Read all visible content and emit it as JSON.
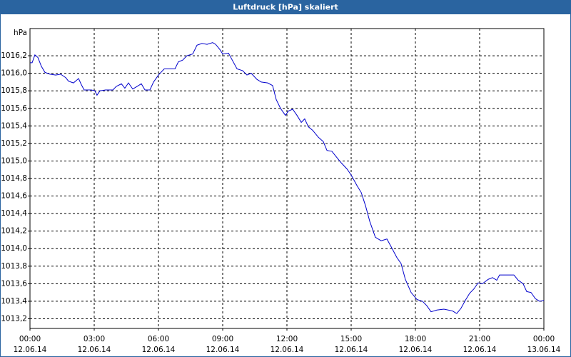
{
  "chart_data": {
    "type": "line",
    "title": "Luftdruck [hPa] skaliert",
    "y_unit": "hPa",
    "x": [
      0,
      0.1,
      0.23,
      0.37,
      0.53,
      0.7,
      0.93,
      1.2,
      1.43,
      1.67,
      1.8,
      2.03,
      2.27,
      2.4,
      2.53,
      2.87,
      3.03,
      3.13,
      3.27,
      3.53,
      3.87,
      4.03,
      4.27,
      4.43,
      4.6,
      4.8,
      5,
      5.2,
      5.37,
      5.6,
      5.77,
      6,
      6.27,
      6.6,
      6.77,
      6.93,
      7.13,
      7.33,
      7.6,
      7.8,
      8.03,
      8.27,
      8.53,
      8.67,
      8.87,
      9,
      9.27,
      9.47,
      9.67,
      9.93,
      10.13,
      10.33,
      10.6,
      10.8,
      11.1,
      11.33,
      11.5,
      11.7,
      11.93,
      12.07,
      12.27,
      12.47,
      12.67,
      12.83,
      13,
      13.2,
      13.47,
      13.7,
      13.87,
      14.1,
      14.33,
      14.53,
      14.8,
      15,
      15.27,
      15.47,
      15.67,
      15.87,
      16.13,
      16.4,
      16.67,
      16.87,
      17.13,
      17.33,
      17.53,
      17.8,
      18.07,
      18.33,
      18.53,
      18.73,
      19,
      19.33,
      19.73,
      19.93,
      20.13,
      20.33,
      20.53,
      20.73,
      20.93,
      21.13,
      21.4,
      21.6,
      21.8,
      21.93,
      22.27,
      22.6,
      22.8,
      23.03,
      23.2,
      23.4,
      23.6,
      23.8,
      24
    ],
    "series": [
      {
        "name": "Luftdruck",
        "color": "#0000cc",
        "values": [
          1016.12,
          1016.12,
          1016.21,
          1016.18,
          1016.08,
          1016.01,
          1015.99,
          1015.98,
          1015.99,
          1015.95,
          1015.91,
          1015.89,
          1015.94,
          1015.87,
          1015.81,
          1015.81,
          1015.8,
          1015.75,
          1015.8,
          1015.81,
          1015.81,
          1015.85,
          1015.88,
          1015.83,
          1015.89,
          1015.82,
          1015.85,
          1015.88,
          1015.81,
          1015.81,
          1015.9,
          1015.98,
          1016.05,
          1016.05,
          1016.05,
          1016.13,
          1016.15,
          1016.2,
          1016.22,
          1016.32,
          1016.34,
          1016.33,
          1016.35,
          1016.33,
          1016.27,
          1016.22,
          1016.23,
          1016.14,
          1016.05,
          1016.03,
          1015.98,
          1016.0,
          1015.93,
          1015.9,
          1015.89,
          1015.86,
          1015.7,
          1015.6,
          1015.52,
          1015.57,
          1015.59,
          1015.52,
          1015.44,
          1015.48,
          1015.39,
          1015.35,
          1015.27,
          1015.22,
          1015.12,
          1015.11,
          1015.04,
          1014.98,
          1014.91,
          1014.84,
          1014.72,
          1014.64,
          1014.49,
          1014.31,
          1014.13,
          1014.09,
          1014.11,
          1014.02,
          1013.9,
          1013.83,
          1013.65,
          1013.5,
          1013.42,
          1013.4,
          1013.35,
          1013.28,
          1013.3,
          1013.31,
          1013.29,
          1013.26,
          1013.32,
          1013.41,
          1013.49,
          1013.54,
          1013.61,
          1013.6,
          1013.65,
          1013.67,
          1013.64,
          1013.7,
          1013.7,
          1013.7,
          1013.64,
          1013.6,
          1013.51,
          1013.5,
          1013.43,
          1013.4,
          1013.41
        ]
      }
    ],
    "xlim": [
      0,
      24
    ],
    "xticks": [
      {
        "value": 0,
        "label": "00:00"
      },
      {
        "value": 3,
        "label": "03:00"
      },
      {
        "value": 6,
        "label": "06:00"
      },
      {
        "value": 9,
        "label": "09:00"
      },
      {
        "value": 12,
        "label": "12:00"
      },
      {
        "value": 15,
        "label": "15:00"
      },
      {
        "value": 18,
        "label": "18:00"
      },
      {
        "value": 21,
        "label": "21:00"
      },
      {
        "value": 24,
        "label": "00:00"
      }
    ],
    "xtick_dates": [
      "12.06.14",
      "12.06.14",
      "12.06.14",
      "12.06.14",
      "12.06.14",
      "12.06.14",
      "12.06.14",
      "12.06.14",
      "13.06.14"
    ],
    "ylim": [
      1013.09,
      1016.51
    ],
    "yticks": [
      {
        "value": 1013.2,
        "label": "1013,2"
      },
      {
        "value": 1013.4,
        "label": "1013,4"
      },
      {
        "value": 1013.6,
        "label": "1013,6"
      },
      {
        "value": 1013.8,
        "label": "1013,8"
      },
      {
        "value": 1014.0,
        "label": "1014,0"
      },
      {
        "value": 1014.2,
        "label": "1014,2"
      },
      {
        "value": 1014.4,
        "label": "1014,4"
      },
      {
        "value": 1014.6,
        "label": "1014,6"
      },
      {
        "value": 1014.8,
        "label": "1014,8"
      },
      {
        "value": 1015.0,
        "label": "1015,0"
      },
      {
        "value": 1015.2,
        "label": "1015,2"
      },
      {
        "value": 1015.4,
        "label": "1015,4"
      },
      {
        "value": 1015.6,
        "label": "1015,6"
      },
      {
        "value": 1015.8,
        "label": "1015,8"
      },
      {
        "value": 1016.0,
        "label": "1016,0"
      },
      {
        "value": 1016.2,
        "label": "1016,2"
      }
    ],
    "grid": true
  }
}
